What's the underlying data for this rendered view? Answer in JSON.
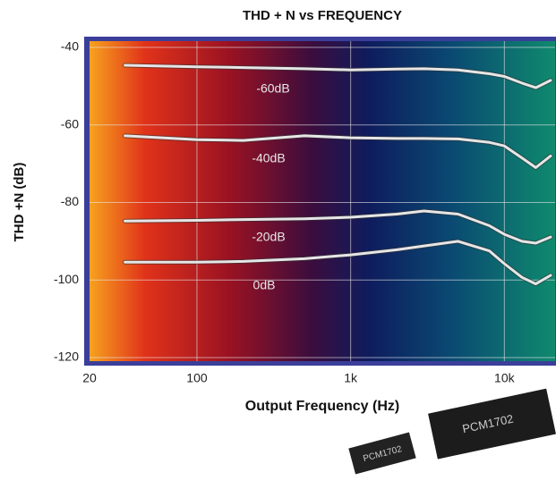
{
  "chart_data": {
    "type": "line",
    "title": "THD + N vs FREQUENCY",
    "xlabel": "Output Frequency (Hz)",
    "ylabel": "THD +N (dB)",
    "x": [
      34,
      100,
      200,
      500,
      1000,
      2000,
      3000,
      5000,
      8000,
      10000,
      13000,
      16000,
      20000
    ],
    "series": [
      {
        "name": "-60dB",
        "color": "#e6e6e6",
        "values": [
          -44.6,
          -45,
          -45.2,
          -45.5,
          -45.8,
          -45.6,
          -45.5,
          -45.8,
          -46.8,
          -47.5,
          -49.2,
          -50.4,
          -48.5
        ]
      },
      {
        "name": "-40dB",
        "color": "#e6e6e6",
        "values": [
          -62.8,
          -63.8,
          -64,
          -62.8,
          -63.3,
          -63.5,
          -63.5,
          -63.6,
          -64.5,
          -65.4,
          -68.5,
          -71,
          -68
        ]
      },
      {
        "name": "-20dB",
        "color": "#e6e6e6",
        "values": [
          -84.8,
          -84.6,
          -84.4,
          -84.2,
          -83.8,
          -83,
          -82.2,
          -83,
          -86,
          -88.2,
          -90,
          -90.5,
          -88.9
        ]
      },
      {
        "name": "0dB",
        "color": "#e6e6e6",
        "values": [
          -95.4,
          -95.4,
          -95.2,
          -94.5,
          -93.5,
          -92.2,
          -91.2,
          -90,
          -92.5,
          -95.8,
          -99.3,
          -101,
          -98.8
        ]
      }
    ],
    "xscale": "log",
    "xlim": [
      20,
      20000
    ],
    "xticks": [
      20,
      100,
      {
        "value": 1000,
        "label": "1k"
      },
      {
        "value": 10000,
        "label": "10k"
      }
    ],
    "ylim": [
      -120,
      -40
    ],
    "yticks": [
      -40,
      -60,
      -80,
      -100,
      -120
    ],
    "grid": true
  },
  "chips": [
    "PCM1702",
    "PCM1702"
  ]
}
